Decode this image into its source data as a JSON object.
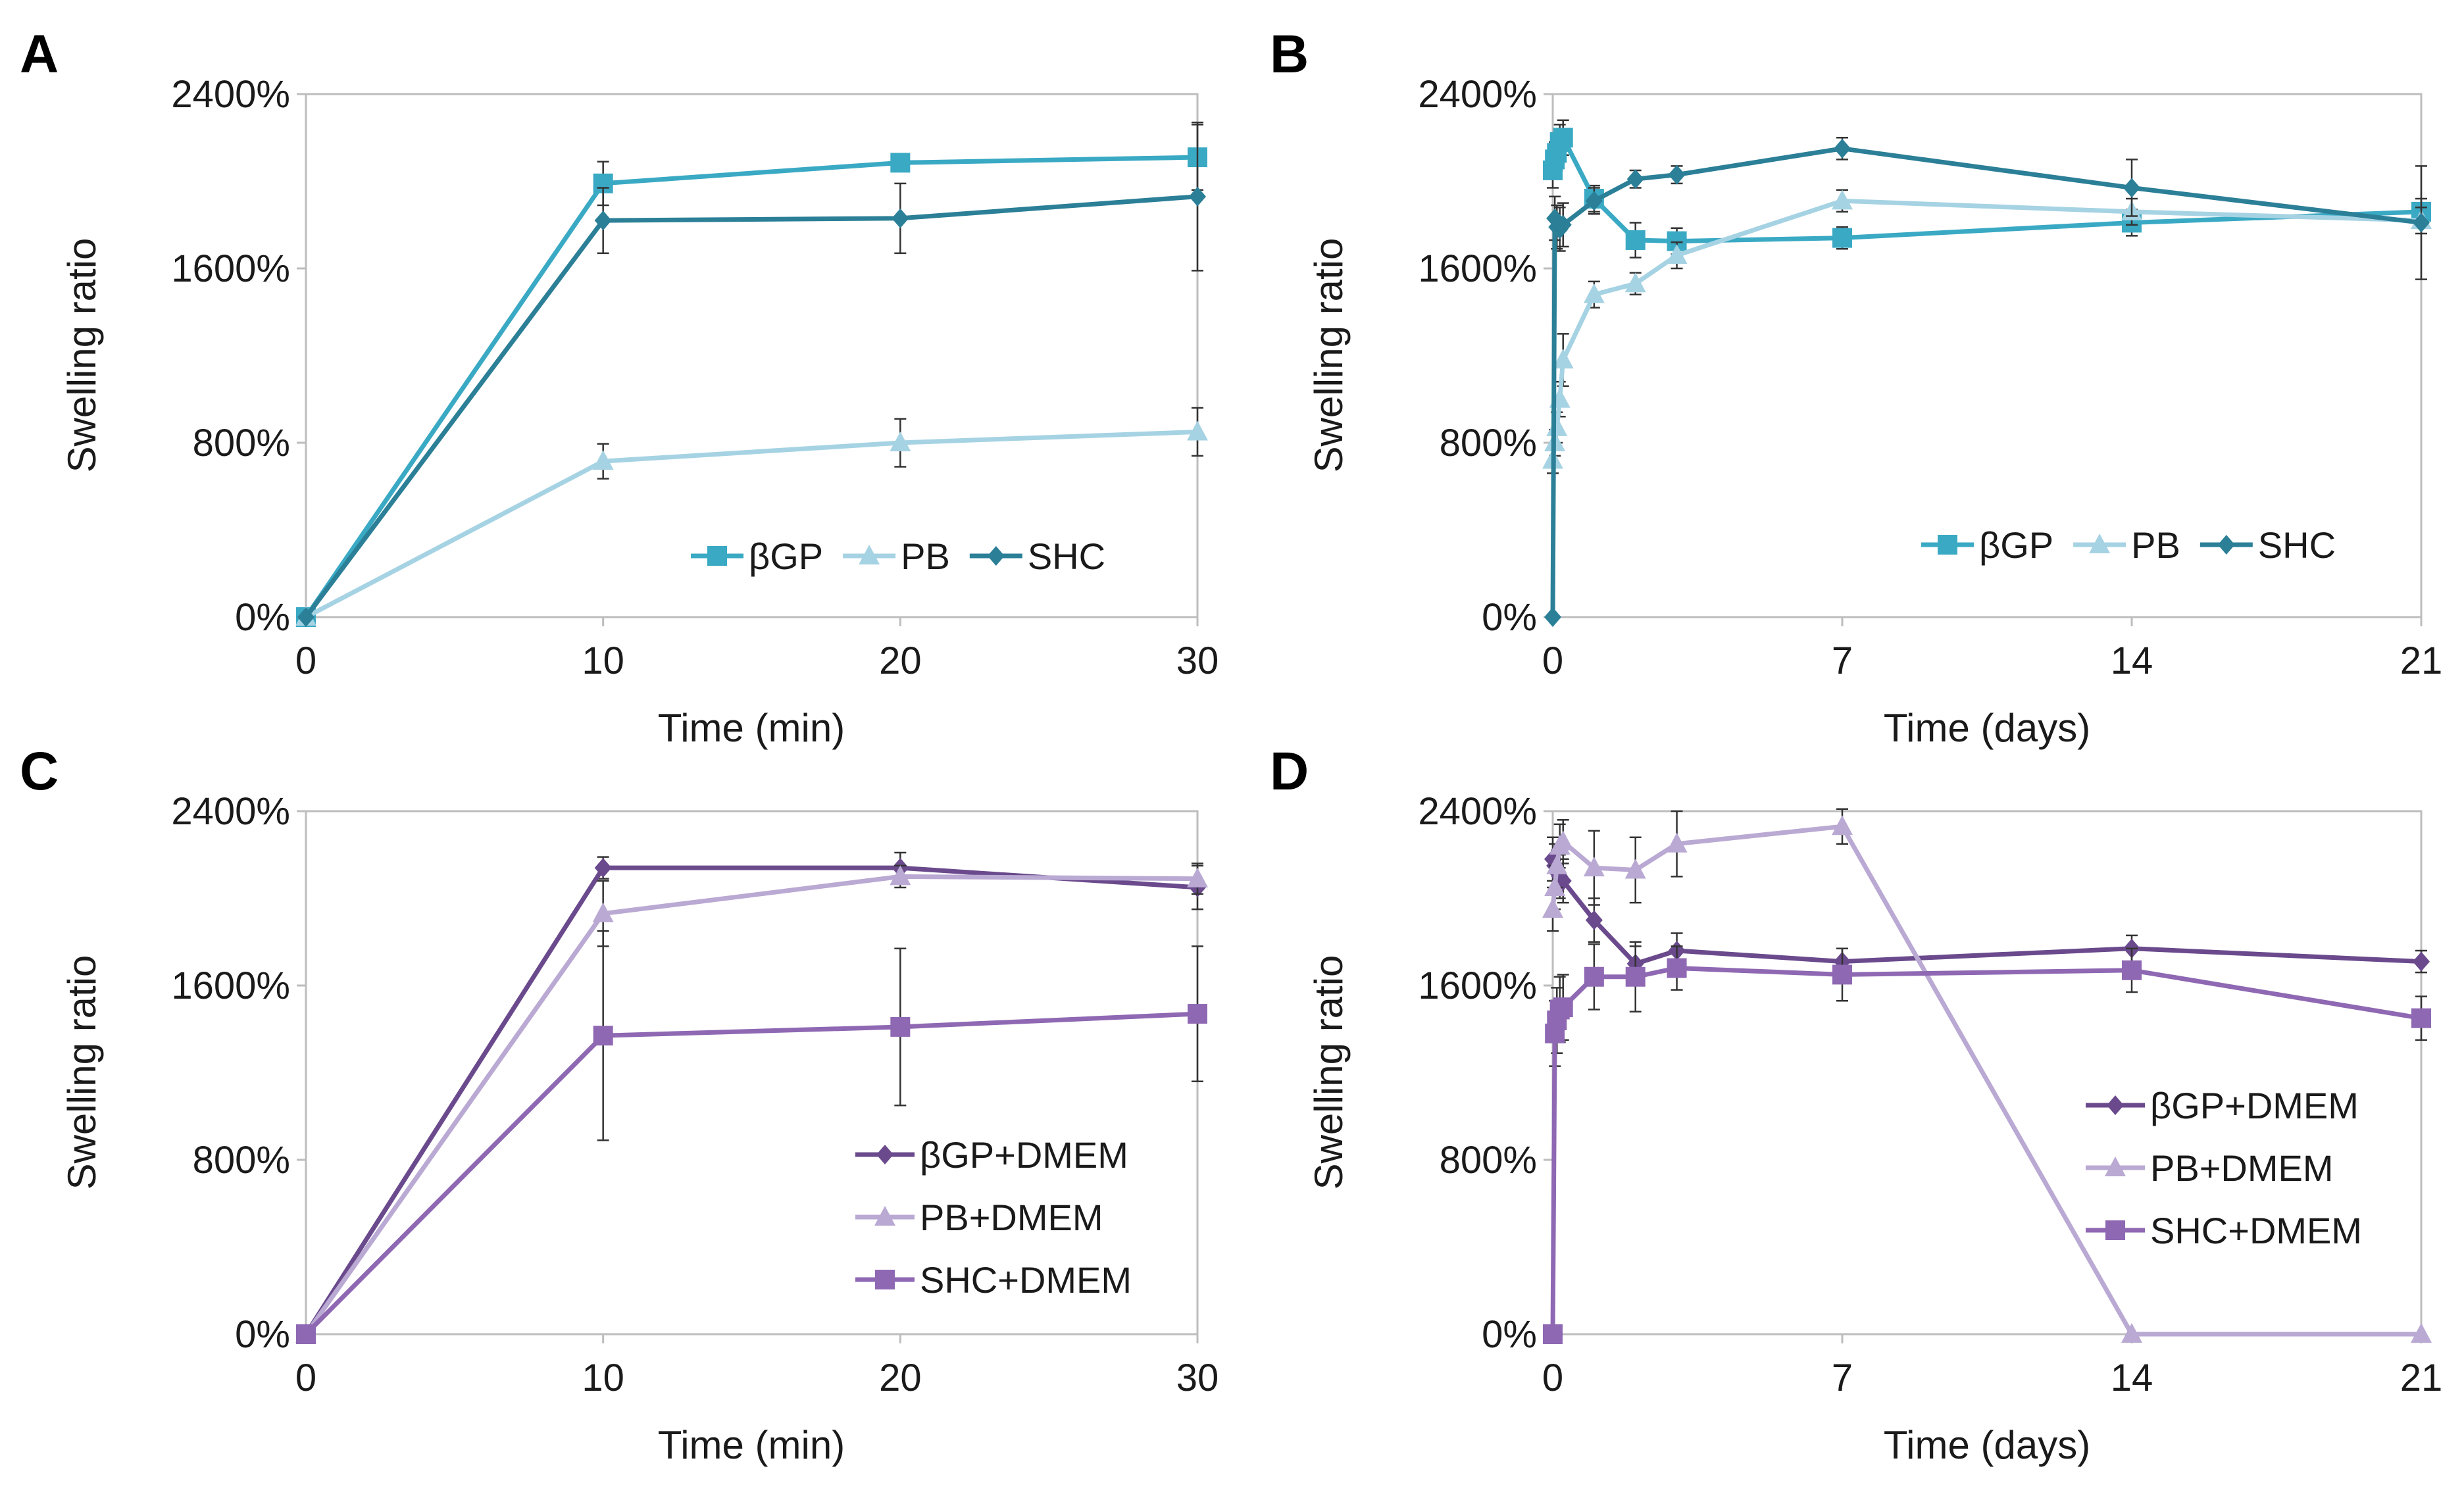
{
  "chart_data": [
    {
      "panel": "A",
      "type": "line",
      "xlabel": "Time (min)",
      "ylabel": "Swelling ratio",
      "xlim": [
        0,
        30
      ],
      "ylim": [
        0,
        2400
      ],
      "xticks": [
        0,
        10,
        20,
        30
      ],
      "xtick_labels": [
        "0",
        "10",
        "20",
        "30"
      ],
      "yticks": [
        0,
        800,
        1600,
        2400
      ],
      "ytick_labels": [
        "0%",
        "800%",
        "1600%",
        "2400%"
      ],
      "legend_position": "bottom-right",
      "legend_layout": "row",
      "series": [
        {
          "name": "βGP",
          "color": "#3aa9c4",
          "marker": "square",
          "x": [
            0,
            10,
            20,
            30
          ],
          "y": [
            0,
            1990,
            2085,
            2110
          ],
          "err": [
            0,
            100,
            0,
            150
          ]
        },
        {
          "name": "PB",
          "color": "#a6d3e3",
          "marker": "triangle",
          "x": [
            0,
            10,
            20,
            30
          ],
          "y": [
            0,
            715,
            800,
            850
          ],
          "err": [
            0,
            80,
            110,
            110
          ]
        },
        {
          "name": "SHC",
          "color": "#2b7f97",
          "marker": "diamond",
          "x": [
            0,
            10,
            20,
            30
          ],
          "y": [
            0,
            1820,
            1830,
            1930
          ],
          "err": [
            0,
            150,
            160,
            340
          ]
        }
      ]
    },
    {
      "panel": "B",
      "type": "line",
      "xlabel": "Time (days)",
      "ylabel": "Swelling ratio",
      "xlim": [
        0,
        21
      ],
      "ylim": [
        0,
        2400
      ],
      "xticks": [
        0,
        7,
        14,
        21
      ],
      "xtick_labels": [
        "0",
        "7",
        "14",
        "21"
      ],
      "yticks": [
        0,
        800,
        1600,
        2400
      ],
      "ytick_labels": [
        "0%",
        "800%",
        "1600%",
        "2400%"
      ],
      "legend_position": "bottom-right",
      "legend_layout": "row",
      "series": [
        {
          "name": "βGP",
          "color": "#3aa9c4",
          "marker": "square",
          "x": [
            0,
            0.05,
            0.1,
            0.17,
            0.25,
            1,
            2,
            3,
            7,
            14,
            21
          ],
          "y": [
            2050,
            2100,
            2130,
            2180,
            2200,
            1920,
            1730,
            1725,
            1740,
            1810,
            1860
          ],
          "err": [
            80,
            80,
            80,
            80,
            80,
            60,
            80,
            60,
            50,
            60,
            60
          ]
        },
        {
          "name": "PB",
          "color": "#a6d3e3",
          "marker": "triangle",
          "x": [
            0,
            0.05,
            0.1,
            0.17,
            0.25,
            1,
            2,
            3,
            7,
            14,
            21
          ],
          "y": [
            720,
            800,
            870,
            1000,
            1180,
            1480,
            1530,
            1660,
            1910,
            1860,
            1820
          ],
          "err": [
            60,
            60,
            70,
            80,
            120,
            60,
            50,
            60,
            50,
            60,
            60
          ]
        },
        {
          "name": "SHC",
          "color": "#2b7f97",
          "marker": "diamond",
          "x": [
            0,
            0.05,
            0.1,
            0.17,
            0.25,
            1,
            2,
            3,
            7,
            14,
            21
          ],
          "y": [
            0,
            1830,
            1790,
            1780,
            1800,
            1910,
            2010,
            2030,
            2150,
            1970,
            1810
          ],
          "err": [
            0,
            100,
            100,
            100,
            100,
            60,
            40,
            40,
            50,
            130,
            260
          ]
        }
      ]
    },
    {
      "panel": "C",
      "type": "line",
      "xlabel": "Time (min)",
      "ylabel": "Swelling ratio",
      "xlim": [
        0,
        30
      ],
      "ylim": [
        0,
        2400
      ],
      "xticks": [
        0,
        10,
        20,
        30
      ],
      "xtick_labels": [
        "0",
        "10",
        "20",
        "30"
      ],
      "yticks": [
        0,
        800,
        1600,
        2400
      ],
      "ytick_labels": [
        "0%",
        "800%",
        "1600%",
        "2400%"
      ],
      "legend_position": "bottom-right",
      "legend_layout": "column",
      "series": [
        {
          "name": "βGP+DMEM",
          "color": "#6a4a8c",
          "marker": "diamond",
          "x": [
            0,
            10,
            20,
            30
          ],
          "y": [
            0,
            2140,
            2140,
            2050
          ],
          "err": [
            0,
            50,
            70,
            100
          ]
        },
        {
          "name": "PB+DMEM",
          "color": "#b9a9d3",
          "marker": "triangle",
          "x": [
            0,
            10,
            20,
            30
          ],
          "y": [
            0,
            1930,
            2100,
            2090
          ],
          "err": [
            0,
            150,
            50,
            70
          ]
        },
        {
          "name": "SHC+DMEM",
          "color": "#8f68b3",
          "marker": "square",
          "x": [
            0,
            10,
            20,
            30
          ],
          "y": [
            0,
            1370,
            1410,
            1470
          ],
          "err": [
            0,
            480,
            360,
            310
          ]
        }
      ]
    },
    {
      "panel": "D",
      "type": "line",
      "xlabel": "Time (days)",
      "ylabel": "Swelling ratio",
      "xlim": [
        0,
        21
      ],
      "ylim": [
        0,
        2400
      ],
      "xticks": [
        0,
        7,
        14,
        21
      ],
      "xtick_labels": [
        "0",
        "7",
        "14",
        "21"
      ],
      "yticks": [
        0,
        800,
        1600,
        2400
      ],
      "ytick_labels": [
        "0%",
        "800%",
        "1600%",
        "2400%"
      ],
      "legend_position": "center-right",
      "legend_layout": "column",
      "series": [
        {
          "name": "βGP+DMEM",
          "color": "#6a4a8c",
          "marker": "diamond",
          "x": [
            0,
            0.05,
            0.1,
            0.17,
            0.25,
            1,
            2,
            3,
            7,
            14,
            21
          ],
          "y": [
            2180,
            2150,
            2120,
            2100,
            2080,
            1900,
            1700,
            1760,
            1710,
            1770,
            1710
          ],
          "err": [
            100,
            100,
            100,
            100,
            100,
            100,
            80,
            80,
            60,
            60,
            50
          ]
        },
        {
          "name": "PB+DMEM",
          "color": "#b9a9d3",
          "marker": "triangle",
          "x": [
            0,
            0.05,
            0.1,
            0.17,
            0.25,
            1,
            2,
            3,
            7,
            14,
            21
          ],
          "y": [
            1950,
            2050,
            2150,
            2240,
            2260,
            2140,
            2130,
            2250,
            2330,
            0,
            0
          ],
          "err": [
            100,
            100,
            100,
            100,
            100,
            170,
            150,
            150,
            80,
            0,
            0
          ]
        },
        {
          "name": "SHC+DMEM",
          "color": "#8f68b3",
          "marker": "square",
          "x": [
            0,
            0.05,
            0.1,
            0.17,
            0.25,
            1,
            2,
            3,
            7,
            14,
            21
          ],
          "y": [
            0,
            1380,
            1440,
            1490,
            1500,
            1640,
            1640,
            1680,
            1650,
            1670,
            1450
          ],
          "err": [
            0,
            150,
            150,
            150,
            150,
            150,
            160,
            100,
            120,
            100,
            100
          ]
        }
      ]
    }
  ]
}
